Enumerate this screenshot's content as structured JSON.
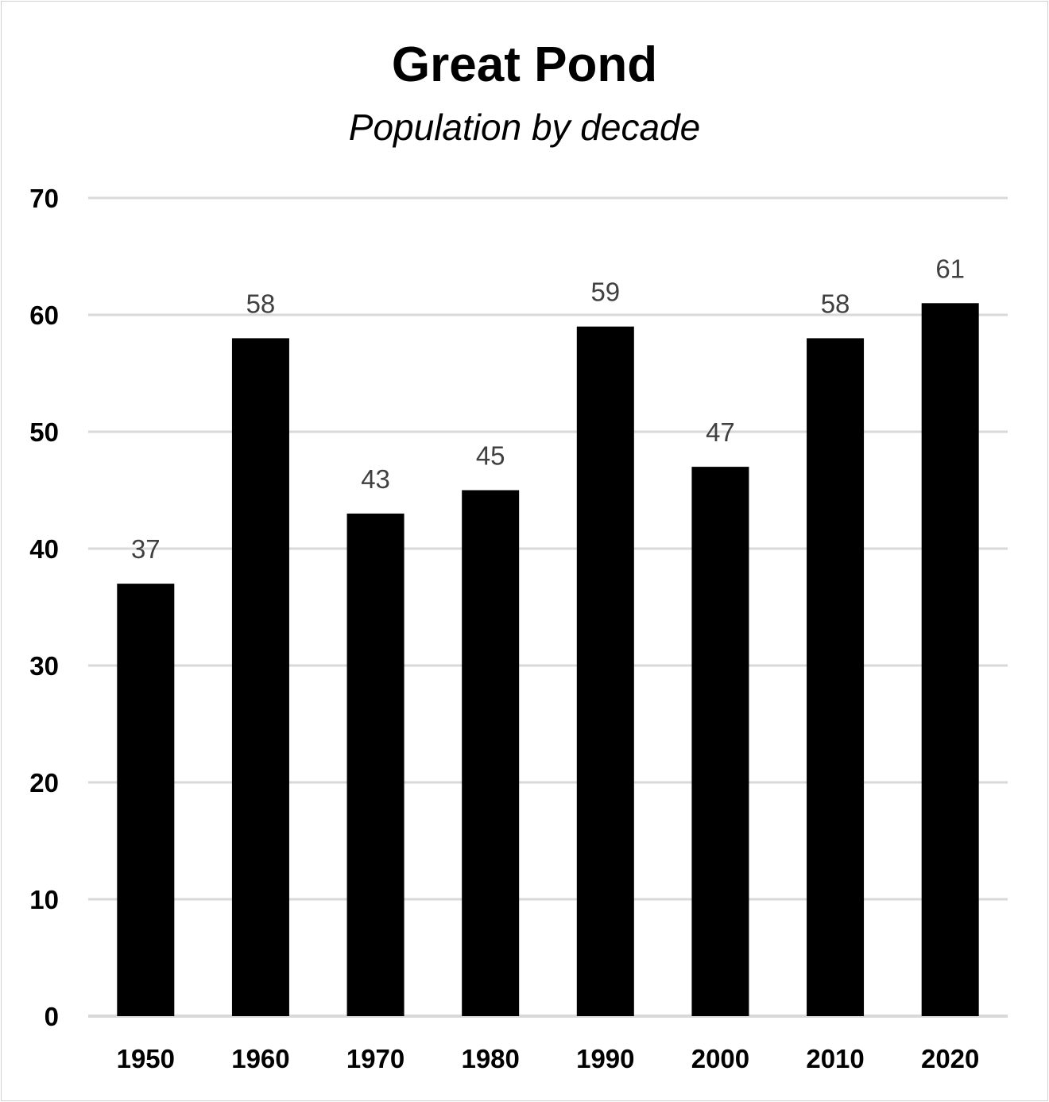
{
  "chart_data": {
    "type": "bar",
    "title": "Great Pond",
    "subtitle": "Population by decade",
    "categories": [
      "1950",
      "1960",
      "1970",
      "1980",
      "1990",
      "2000",
      "2010",
      "2020"
    ],
    "values": [
      37,
      58,
      43,
      45,
      59,
      47,
      58,
      61
    ],
    "ylim": [
      0,
      70
    ],
    "yticks": [
      0,
      10,
      20,
      30,
      40,
      50,
      60,
      70
    ],
    "grid": true,
    "data_labels": true,
    "bar_color": "#000000",
    "gridline_color": "#d9d9d9",
    "label_color": "#404040"
  }
}
